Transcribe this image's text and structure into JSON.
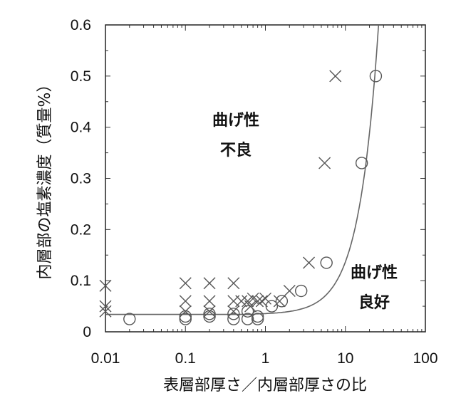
{
  "chart_data": {
    "type": "scatter",
    "xlabel": "表層部厚さ／内層部厚さの比",
    "ylabel": "内層部の塩素濃度（質量%）",
    "xscale": "log",
    "xlim": [
      0.01,
      100
    ],
    "ylim": [
      0,
      0.6
    ],
    "xticks": [
      "0.01",
      "0.1",
      "1",
      "10",
      "100"
    ],
    "yticks": [
      "0",
      "0.1",
      "0.2",
      "0.3",
      "0.4",
      "0.5",
      "0.6"
    ],
    "annotations": [
      {
        "id": "bad",
        "lines": [
          "曲げ性",
          "不良"
        ]
      },
      {
        "id": "good",
        "lines": [
          "曲げ性",
          "良好"
        ]
      }
    ],
    "series": [
      {
        "marker": "x",
        "points": [
          [
            0.01,
            0.09
          ],
          [
            0.01,
            0.05
          ],
          [
            0.01,
            0.04
          ],
          [
            0.1,
            0.095
          ],
          [
            0.1,
            0.06
          ],
          [
            0.1,
            0.04
          ],
          [
            0.2,
            0.095
          ],
          [
            0.2,
            0.06
          ],
          [
            0.2,
            0.04
          ],
          [
            0.4,
            0.095
          ],
          [
            0.4,
            0.06
          ],
          [
            0.4,
            0.04
          ],
          [
            0.5,
            0.06
          ],
          [
            0.6,
            0.06
          ],
          [
            0.65,
            0.05
          ],
          [
            0.7,
            0.065
          ],
          [
            0.8,
            0.06
          ],
          [
            0.9,
            0.06
          ],
          [
            1.0,
            0.065
          ],
          [
            1.5,
            0.06
          ],
          [
            2.0,
            0.08
          ],
          [
            3.5,
            0.135
          ],
          [
            5.5,
            0.33
          ],
          [
            7.5,
            0.5
          ]
        ]
      },
      {
        "marker": "o",
        "points": [
          [
            0.02,
            0.025
          ],
          [
            0.1,
            0.03
          ],
          [
            0.1,
            0.025
          ],
          [
            0.2,
            0.035
          ],
          [
            0.2,
            0.03
          ],
          [
            0.4,
            0.035
          ],
          [
            0.4,
            0.025
          ],
          [
            0.6,
            0.04
          ],
          [
            0.6,
            0.025
          ],
          [
            0.8,
            0.03
          ],
          [
            0.8,
            0.025
          ],
          [
            1.2,
            0.05
          ],
          [
            1.6,
            0.06
          ],
          [
            2.8,
            0.08
          ],
          [
            5.8,
            0.135
          ],
          [
            16,
            0.33
          ],
          [
            24,
            0.5
          ]
        ]
      }
    ],
    "line": {
      "baseline": 0.034,
      "knee": 0.75,
      "top_x": 26
    }
  }
}
